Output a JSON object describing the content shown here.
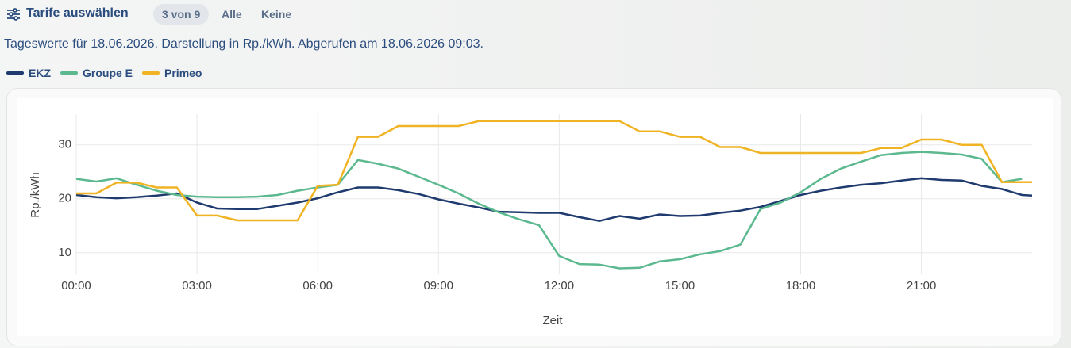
{
  "toolbar": {
    "title": "Tarife auswählen",
    "selection": "3 von 9",
    "all": "Alle",
    "none": "Keine"
  },
  "info": "Tageswerte für 18.06.2026. Darstellung in Rp./kWh. Abgerufen am 18.06.2026 09:03.",
  "chart_data": {
    "type": "line",
    "x_label": "Zeit",
    "y_label": "Rp./kWh",
    "x": [
      0,
      0.5,
      1,
      1.5,
      2,
      2.5,
      3,
      3.5,
      4,
      4.5,
      5,
      5.5,
      6,
      6.5,
      7,
      7.5,
      8,
      8.5,
      9,
      9.5,
      10,
      10.5,
      11,
      11.5,
      12,
      12.5,
      13,
      13.5,
      14,
      14.5,
      15,
      15.5,
      16,
      16.5,
      17,
      17.5,
      18,
      18.5,
      19,
      19.5,
      20,
      20.5,
      21,
      21.5,
      22,
      22.5,
      23,
      23.5,
      23.75
    ],
    "series": [
      {
        "name": "EKZ",
        "color": "#1f3a6e",
        "values": [
          20.7,
          20.3,
          20.1,
          20.3,
          20.6,
          21.0,
          19.3,
          18.2,
          18.1,
          18.1,
          18.7,
          19.3,
          20.1,
          21.2,
          22.1,
          22.1,
          21.6,
          20.9,
          19.9,
          19.1,
          18.4,
          17.6,
          17.5,
          17.4,
          17.4,
          16.6,
          15.9,
          16.8,
          16.3,
          17.1,
          16.8,
          16.9,
          17.4,
          17.8,
          18.5,
          19.6,
          20.7,
          21.5,
          22.1,
          22.6,
          22.9,
          23.4,
          23.8,
          23.5,
          23.4,
          22.4,
          21.8,
          20.7,
          20.6
        ]
      },
      {
        "name": "Groupe E",
        "color": "#5cb98f",
        "values": [
          23.7,
          23.2,
          23.8,
          22.6,
          21.5,
          20.7,
          20.4,
          20.3,
          20.3,
          20.4,
          20.7,
          21.5,
          22.1,
          22.6,
          27.2,
          26.5,
          25.6,
          24.1,
          22.6,
          21.0,
          19.1,
          17.5,
          16.2,
          15.1,
          9.4,
          7.9,
          7.8,
          7.1,
          7.2,
          8.4,
          8.8,
          9.7,
          10.3,
          11.5,
          18.1,
          19.3,
          21.2,
          23.7,
          25.6,
          26.9,
          28.1,
          28.5,
          28.7,
          28.5,
          28.2,
          27.4,
          23.1,
          23.7,
          null
        ]
      },
      {
        "name": "Primeo",
        "color": "#f0b323",
        "values": [
          21.0,
          21.0,
          23.0,
          23.0,
          22.1,
          22.1,
          16.9,
          16.9,
          16.0,
          16.0,
          16.0,
          16.0,
          22.4,
          22.6,
          31.5,
          31.5,
          33.5,
          33.5,
          33.5,
          33.5,
          34.4,
          34.4,
          34.4,
          34.4,
          34.4,
          34.4,
          34.4,
          34.4,
          32.5,
          32.5,
          31.5,
          31.5,
          29.6,
          29.6,
          28.5,
          28.5,
          28.5,
          28.5,
          28.5,
          28.5,
          29.4,
          29.4,
          31.0,
          31.0,
          30.0,
          30.0,
          23.1,
          23.1,
          23.1
        ]
      }
    ],
    "xlim": [
      0,
      23.75
    ],
    "xticks": [
      {
        "value": 0,
        "label": "00:00"
      },
      {
        "value": 3,
        "label": "03:00"
      },
      {
        "value": 6,
        "label": "06:00"
      },
      {
        "value": 9,
        "label": "09:00"
      },
      {
        "value": 12,
        "label": "12:00"
      },
      {
        "value": 15,
        "label": "15:00"
      },
      {
        "value": 18,
        "label": "18:00"
      },
      {
        "value": 21,
        "label": "21:00"
      }
    ],
    "ylim": [
      6,
      35.7
    ],
    "yticks": [
      10,
      20,
      30
    ],
    "grid": true,
    "legend": "top-left"
  }
}
